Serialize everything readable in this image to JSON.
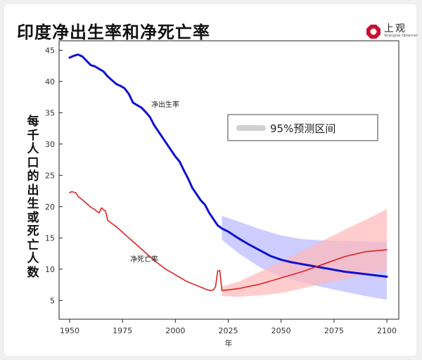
{
  "header": {
    "title": "印度净出生率和净死亡率",
    "logo_text": "上观",
    "logo_sub": "Shanghai Observer"
  },
  "chart_data": {
    "type": "line",
    "ylabel": "每千人口的出生或死亡人数",
    "xlabel": "年",
    "xlim": [
      1950,
      2100
    ],
    "ylim": [
      2,
      46.5
    ],
    "xticks": [
      1950,
      1975,
      2000,
      2025,
      2050,
      2075,
      2100
    ],
    "yticks": [
      5,
      10,
      15,
      20,
      25,
      30,
      35,
      40,
      45
    ],
    "legend": {
      "label": "95%预测区间",
      "placement": "top-right"
    },
    "colors": {
      "birth": "#1010d0",
      "death": "#dd2222",
      "birth_band": "#b8b8ff",
      "death_band": "#ffb8b8",
      "legend_swatch": "#d0d0d0"
    },
    "series": [
      {
        "name": "净出生率",
        "label": "净出生率",
        "x": [
          1950,
          1952,
          1954,
          1956,
          1958,
          1960,
          1962,
          1964,
          1966,
          1968,
          1970,
          1972,
          1974,
          1976,
          1978,
          1980,
          1982,
          1984,
          1986,
          1988,
          1990,
          1992,
          1994,
          1996,
          1998,
          2000,
          2002,
          2004,
          2006,
          2008,
          2010,
          2012,
          2014,
          2016,
          2018,
          2020,
          2022,
          2025,
          2030,
          2035,
          2040,
          2045,
          2050,
          2055,
          2060,
          2065,
          2070,
          2075,
          2080,
          2085,
          2090,
          2095,
          2100
        ],
        "y": [
          43.8,
          44.1,
          44.3,
          44.0,
          43.3,
          42.6,
          42.4,
          42.0,
          41.6,
          40.8,
          40.2,
          39.6,
          39.3,
          38.9,
          38.0,
          36.6,
          36.2,
          35.8,
          35.1,
          34.3,
          33.0,
          32.0,
          31.0,
          30.0,
          29.0,
          28.0,
          27.2,
          25.8,
          24.5,
          23.0,
          22.0,
          21.0,
          20.3,
          19.0,
          18.0,
          17.0,
          16.5,
          16.0,
          14.9,
          13.9,
          13.0,
          12.1,
          11.5,
          11.1,
          10.8,
          10.5,
          10.2,
          9.9,
          9.6,
          9.4,
          9.2,
          9.0,
          8.8
        ]
      },
      {
        "name": "净死亡率",
        "label": "净死亡率",
        "x": [
          1950,
          1951,
          1952,
          1953,
          1954,
          1956,
          1958,
          1960,
          1962,
          1963,
          1964,
          1965,
          1966,
          1967,
          1968,
          1970,
          1972,
          1975,
          1978,
          1980,
          1985,
          1990,
          1995,
          2000,
          2005,
          2010,
          2013,
          2015,
          2017,
          2018,
          2019,
          2020,
          2021,
          2022,
          2025,
          2030,
          2040,
          2050,
          2060,
          2070,
          2080,
          2090,
          2100
        ],
        "y": [
          22.2,
          22.4,
          22.3,
          22.2,
          21.6,
          21.1,
          20.5,
          19.9,
          19.5,
          19.2,
          19.0,
          19.8,
          19.5,
          19.3,
          17.8,
          17.3,
          16.8,
          15.9,
          15.0,
          14.4,
          12.9,
          11.4,
          10.1,
          9.1,
          8.1,
          7.4,
          7.0,
          6.7,
          6.6,
          6.7,
          7.2,
          9.7,
          9.8,
          6.6,
          6.7,
          6.9,
          7.6,
          8.6,
          9.6,
          10.8,
          12.0,
          12.8,
          13.1
        ]
      }
    ],
    "intervals": [
      {
        "name": "净出生率",
        "x": [
          2022,
          2030,
          2040,
          2050,
          2060,
          2070,
          2080,
          2090,
          2100
        ],
        "upper": [
          18.5,
          17.6,
          16.4,
          15.4,
          14.8,
          14.6,
          14.5,
          14.4,
          14.4
        ],
        "lower": [
          14.7,
          12.5,
          10.3,
          8.8,
          7.9,
          7.1,
          6.4,
          5.7,
          5.1
        ]
      },
      {
        "name": "净死亡率",
        "x": [
          2022,
          2030,
          2040,
          2050,
          2060,
          2070,
          2080,
          2090,
          2100
        ],
        "upper": [
          7.2,
          8.0,
          9.6,
          11.2,
          12.9,
          14.6,
          16.3,
          17.9,
          19.6
        ],
        "lower": [
          5.7,
          5.6,
          5.8,
          6.2,
          6.9,
          7.7,
          8.4,
          9.2,
          9.8
        ]
      }
    ]
  }
}
